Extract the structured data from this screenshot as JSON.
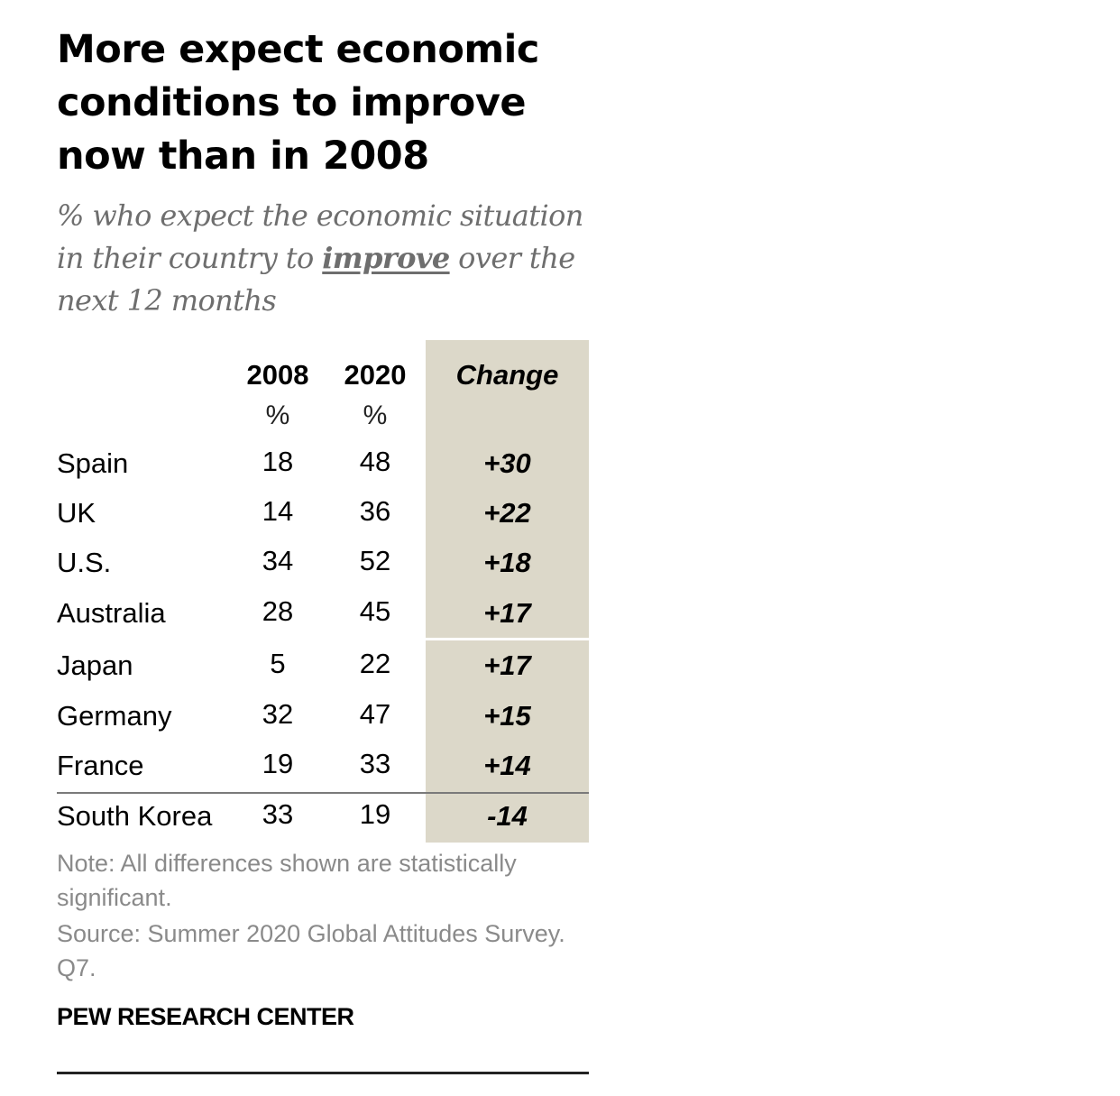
{
  "chart_data": {
    "type": "table",
    "title": "More expect economic conditions to improve now than in 2008",
    "subtitle": {
      "before": "% who expect the economic situation in their country to ",
      "emphasis": "improve",
      "after": " over the next 12 months"
    },
    "columns": [
      "2008",
      "2020",
      "Change"
    ],
    "units": [
      "%",
      "%"
    ],
    "rows": [
      {
        "country": "Spain",
        "v2008": "18",
        "v2020": "48",
        "change": "+30"
      },
      {
        "country": "UK",
        "v2008": "14",
        "v2020": "36",
        "change": "+22"
      },
      {
        "country": "U.S.",
        "v2008": "34",
        "v2020": "52",
        "change": "+18"
      },
      {
        "country": "Australia",
        "v2008": "28",
        "v2020": "45",
        "change": "+17"
      },
      {
        "country": "Japan",
        "v2008": "5",
        "v2020": "22",
        "change": "+17"
      },
      {
        "country": "Germany",
        "v2008": "32",
        "v2020": "47",
        "change": "+15"
      },
      {
        "country": "France",
        "v2008": "19",
        "v2020": "33",
        "change": "+14"
      },
      {
        "country": "South Korea",
        "v2008": "33",
        "v2020": "19",
        "change": "-14"
      }
    ],
    "note": "Note: All differences shown are statistically significant.",
    "source": "Source: Summer 2020 Global Attitudes Survey. Q7.",
    "credit": "PEW RESEARCH CENTER",
    "colors": {
      "change_column_bg": "#dcd8c9",
      "subtitle": "#6e6e6e",
      "note": "#8a8a8a"
    }
  }
}
